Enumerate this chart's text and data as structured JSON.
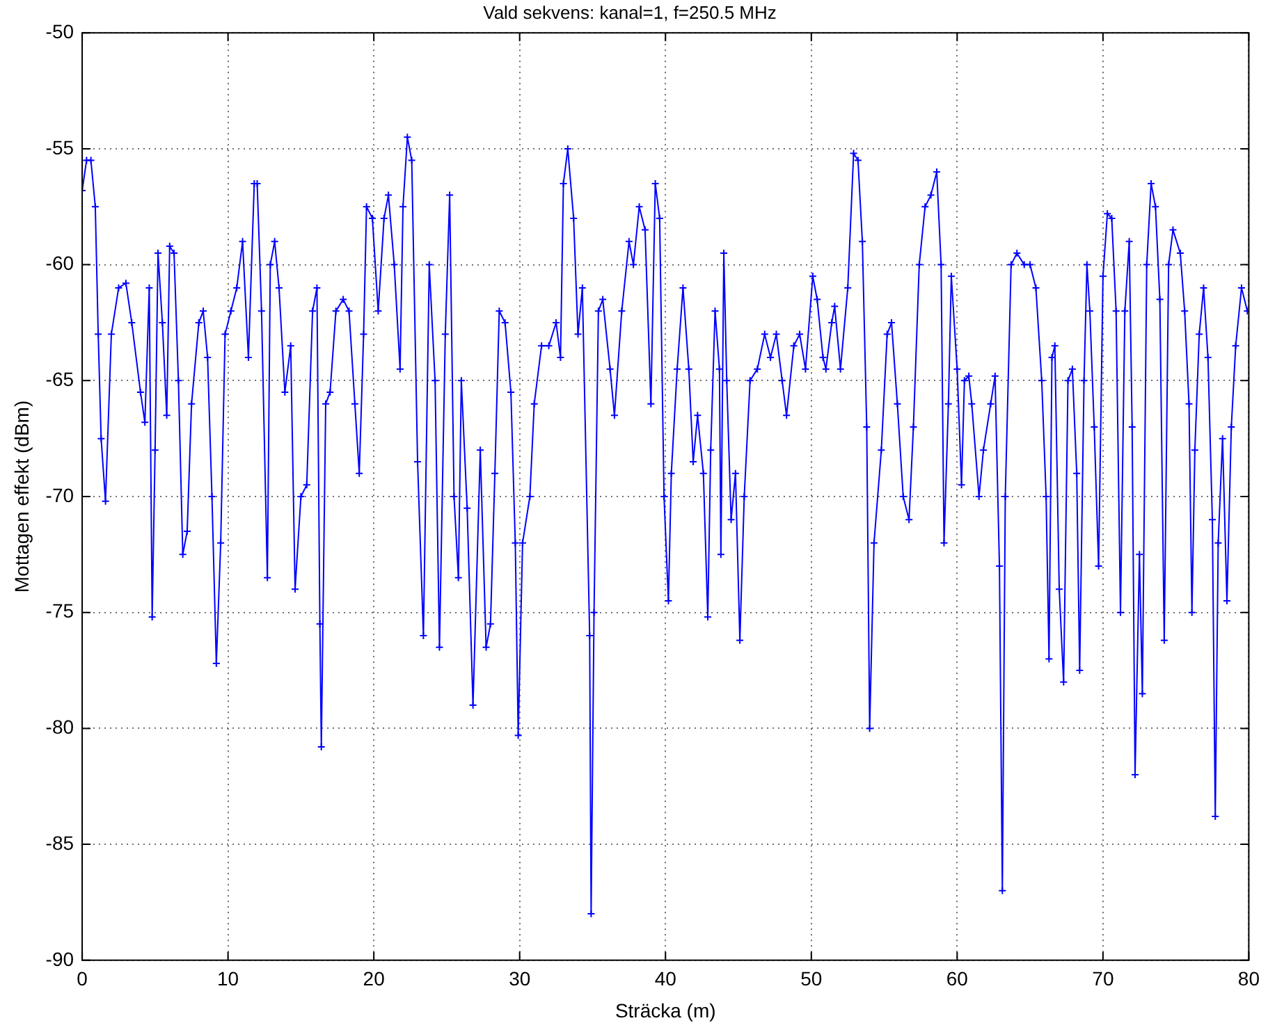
{
  "chart_data": {
    "type": "line",
    "title": "Vald sekvens: kanal=1, f=250.5 MHz",
    "xlabel": "Sträcka (m)",
    "ylabel": "Mottagen effekt (dBm)",
    "xlim": [
      0,
      80
    ],
    "xticks": [
      0,
      10,
      20,
      30,
      40,
      50,
      60,
      70,
      80
    ],
    "ylim": [
      -90,
      -50
    ],
    "yticks": [
      -90,
      -85,
      -80,
      -75,
      -70,
      -65,
      -60,
      -55,
      -50
    ],
    "grid": true,
    "marker": "cross",
    "line_style": "solid",
    "series": [
      {
        "color": "#0000ff",
        "x": [
          0.0,
          0.3,
          0.6,
          0.9,
          1.1,
          1.3,
          1.6,
          2.0,
          2.5,
          3.0,
          3.4,
          4.0,
          4.3,
          4.6,
          4.8,
          5.0,
          5.2,
          5.5,
          5.8,
          6.0,
          6.3,
          6.6,
          6.9,
          7.2,
          7.5,
          8.0,
          8.3,
          8.6,
          8.9,
          9.2,
          9.5,
          9.8,
          10.2,
          10.6,
          11.0,
          11.4,
          11.8,
          12.0,
          12.3,
          12.7,
          12.9,
          13.2,
          13.5,
          13.9,
          14.3,
          14.6,
          15.0,
          15.4,
          15.8,
          16.1,
          16.3,
          16.4,
          16.7,
          17.0,
          17.4,
          17.9,
          18.3,
          18.7,
          19.0,
          19.3,
          19.5,
          19.9,
          20.3,
          20.7,
          21.0,
          21.4,
          21.8,
          22.0,
          22.3,
          22.6,
          23.0,
          23.4,
          23.8,
          24.2,
          24.5,
          24.9,
          25.2,
          25.5,
          25.8,
          26.0,
          26.4,
          26.8,
          27.3,
          27.7,
          28.0,
          28.3,
          28.6,
          29.0,
          29.4,
          29.7,
          29.9,
          30.2,
          30.7,
          31.0,
          31.5,
          32.0,
          32.5,
          32.8,
          33.0,
          33.3,
          33.7,
          34.0,
          34.3,
          34.8,
          34.9,
          35.1,
          35.4,
          35.7,
          36.2,
          36.5,
          37.0,
          37.5,
          37.8,
          38.2,
          38.6,
          39.0,
          39.3,
          39.6,
          39.9,
          40.2,
          40.4,
          40.8,
          41.2,
          41.6,
          41.9,
          42.2,
          42.6,
          42.9,
          43.1,
          43.4,
          43.7,
          43.8,
          44.0,
          44.2,
          44.5,
          44.8,
          45.1,
          45.4,
          45.8,
          46.3,
          46.8,
          47.2,
          47.6,
          48.0,
          48.3,
          48.8,
          49.2,
          49.6,
          50.1,
          50.4,
          50.8,
          51.0,
          51.4,
          51.6,
          52.0,
          52.5,
          52.9,
          53.2,
          53.5,
          53.8,
          54.0,
          54.3,
          54.8,
          55.2,
          55.5,
          55.9,
          56.3,
          56.7,
          57.0,
          57.4,
          57.8,
          58.2,
          58.6,
          58.9,
          59.1,
          59.4,
          59.6,
          60.0,
          60.3,
          60.5,
          60.8,
          61.0,
          61.5,
          61.8,
          62.3,
          62.6,
          62.9,
          63.1,
          63.3,
          63.7,
          64.1,
          64.6,
          65.0,
          65.4,
          65.8,
          66.1,
          66.3,
          66.5,
          66.7,
          67.0,
          67.3,
          67.6,
          67.9,
          68.2,
          68.4,
          68.7,
          68.9,
          69.1,
          69.4,
          69.7,
          70.0,
          70.3,
          70.6,
          70.9,
          71.2,
          71.5,
          71.8,
          72.0,
          72.2,
          72.5,
          72.7,
          73.0,
          73.3,
          73.6,
          73.9,
          74.2,
          74.5,
          74.8,
          75.3,
          75.6,
          75.9,
          76.1,
          76.3,
          76.6,
          76.9,
          77.2,
          77.5,
          77.7,
          77.9,
          78.2,
          78.5,
          78.8,
          79.1,
          79.5,
          79.9
        ],
        "values": [
          -56.8,
          -55.5,
          -55.5,
          -57.5,
          -63,
          -67.5,
          -70.2,
          -63,
          -61,
          -60.8,
          -62.5,
          -65.5,
          -66.8,
          -61,
          -75.2,
          -68,
          -59.5,
          -62.5,
          -66.5,
          -59.2,
          -59.5,
          -65,
          -72.5,
          -71.5,
          -66,
          -62.5,
          -62,
          -64,
          -70,
          -77.2,
          -72,
          -63,
          -62,
          -61,
          -59,
          -64,
          -56.5,
          -56.5,
          -62,
          -73.5,
          -60,
          -59,
          -61,
          -65.5,
          -63.5,
          -74,
          -70,
          -69.5,
          -62,
          -61,
          -75.5,
          -80.8,
          -66,
          -65.5,
          -62,
          -61.5,
          -62,
          -66,
          -69,
          -63,
          -57.5,
          -58,
          -62,
          -58,
          -57,
          -60,
          -64.5,
          -57.5,
          -54.5,
          -55.5,
          -68.5,
          -76,
          -60,
          -65,
          -76.5,
          -63,
          -57,
          -70,
          -73.5,
          -65,
          -70.5,
          -79,
          -68,
          -76.5,
          -75.5,
          -69,
          -62,
          -62.5,
          -65.5,
          -72,
          -80.3,
          -72,
          -70,
          -66,
          -63.5,
          -63.5,
          -62.5,
          -64,
          -56.5,
          -55,
          -58,
          -63,
          -61,
          -76,
          -88,
          -75,
          -62,
          -61.5,
          -64.5,
          -66.5,
          -62,
          -59,
          -60,
          -57.5,
          -58.5,
          -66,
          -56.5,
          -58,
          -70,
          -74.5,
          -69,
          -64.5,
          -61,
          -64.5,
          -68.5,
          -66.5,
          -69,
          -75.2,
          -68,
          -62,
          -64.5,
          -72.5,
          -59.5,
          -65,
          -71,
          -69,
          -76.2,
          -70,
          -65,
          -64.5,
          -63,
          -64,
          -63,
          -65,
          -66.5,
          -63.5,
          -63,
          -64.5,
          -60.5,
          -61.5,
          -64,
          -64.5,
          -62.5,
          -61.8,
          -64.5,
          -61,
          -55.2,
          -55.5,
          -59,
          -67,
          -80,
          -72,
          -68,
          -63,
          -62.5,
          -66,
          -70,
          -71,
          -67,
          -60,
          -57.5,
          -57,
          -56,
          -60,
          -72,
          -66,
          -60.5,
          -64.5,
          -69.5,
          -65,
          -64.8,
          -66,
          -70,
          -68,
          -66,
          -64.8,
          -73,
          -87,
          -70,
          -60,
          -59.5,
          -60,
          -60,
          -61,
          -65,
          -70,
          -77,
          -64,
          -63.5,
          -74,
          -78,
          -65,
          -64.5,
          -69,
          -77.5,
          -65,
          -60,
          -62,
          -67,
          -73,
          -60.5,
          -57.8,
          -58,
          -62,
          -75,
          -62,
          -59,
          -67,
          -82,
          -72.5,
          -78.5,
          -60,
          -56.5,
          -57.5,
          -61.5,
          -76.2,
          -60,
          -58.5,
          -59.5,
          -62,
          -66,
          -75,
          -68,
          -63,
          -61,
          -64,
          -71,
          -83.8,
          -72,
          -67.5,
          -74.5,
          -67,
          -63.5,
          -61,
          -62
        ]
      }
    ]
  }
}
